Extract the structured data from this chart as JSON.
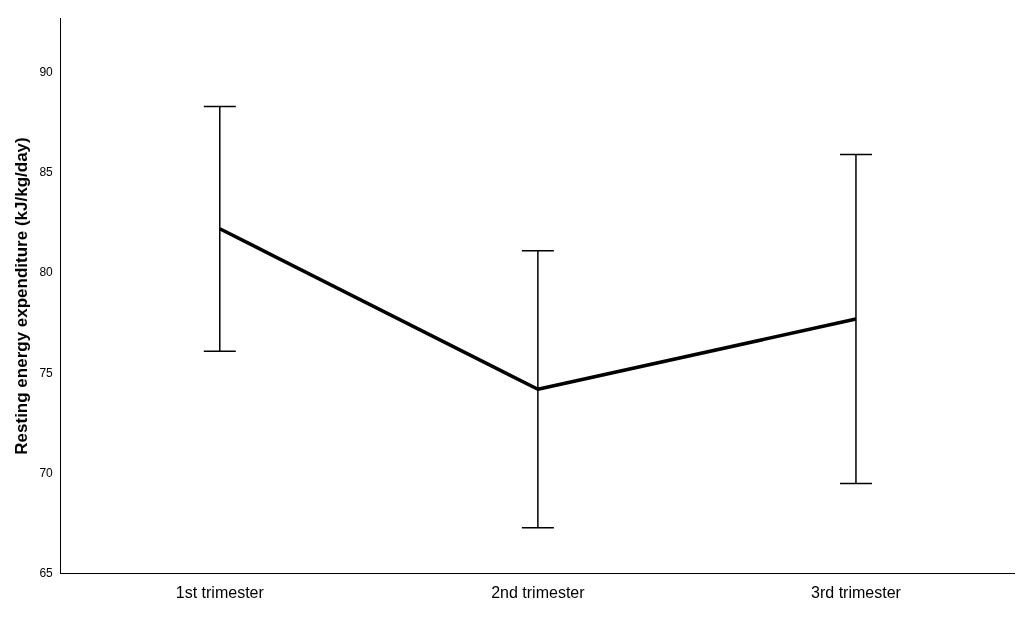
{
  "chart_data": {
    "type": "line",
    "ylabel": "Resting energy expenditure (kJ/kg/day)",
    "categories": [
      "1st trimester",
      "2nd trimester",
      "3rd trimester"
    ],
    "series": [
      {
        "color": "#000000",
        "values": [
          82.2,
          74.2,
          77.7
        ],
        "errors": [
          [
            76.1,
            88.3
          ],
          [
            67.3,
            81.1
          ],
          [
            69.5,
            85.9
          ]
        ]
      }
    ],
    "ylim": [
      65,
      92.7
    ],
    "yticks": [
      65,
      70,
      75,
      80,
      85,
      90
    ],
    "grid": false,
    "legend": false,
    "marker": "none",
    "line_style": "solid"
  }
}
